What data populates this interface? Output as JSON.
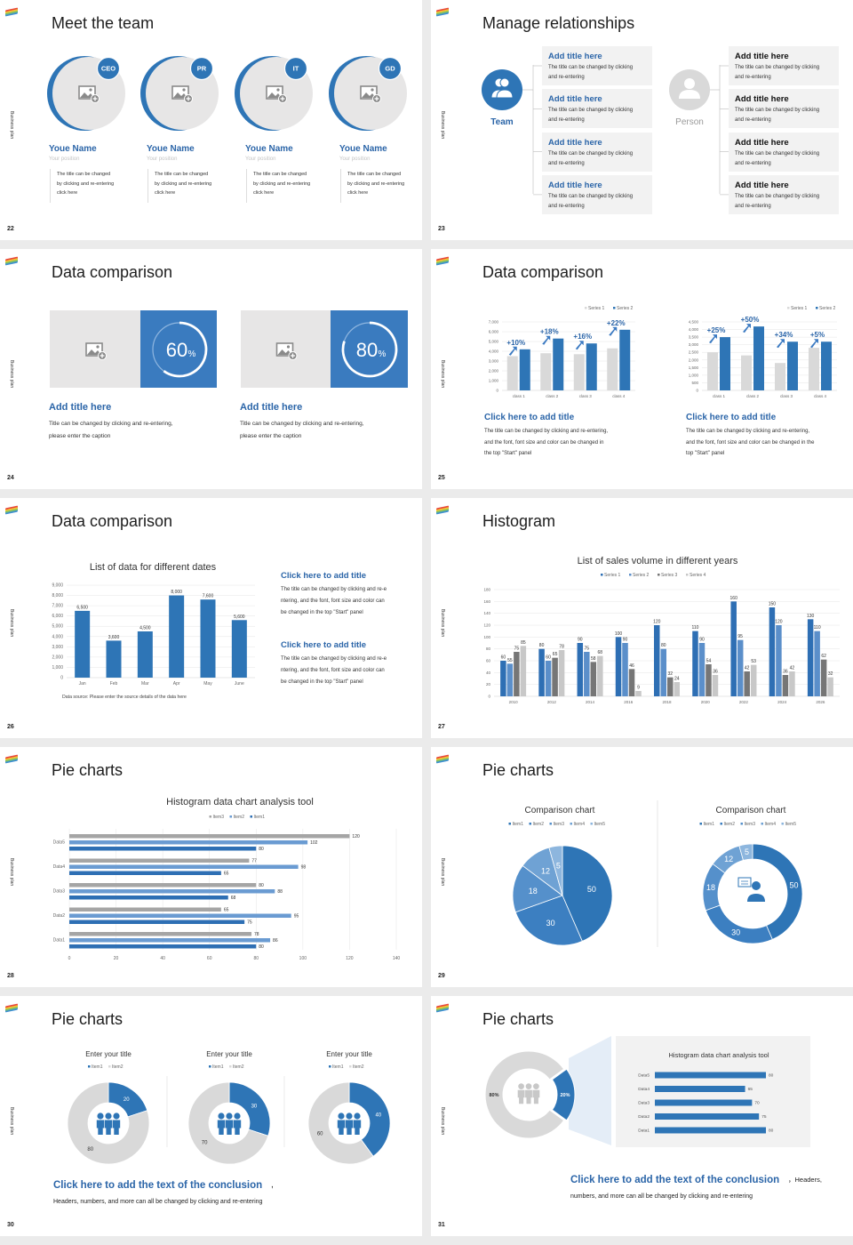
{
  "side_label": "Business plan",
  "colors": {
    "accent": "#2e75b6",
    "grey": "#d9d9d9",
    "panel": "#f2f2f2",
    "title_blue": "#2b65a8"
  },
  "slides": [
    {
      "number": "22",
      "title": "Meet the team",
      "members": [
        {
          "badge": "CEO",
          "name": "Youe Name",
          "position": "Your position",
          "desc": [
            "The title can be changed",
            "by clicking and re-entering",
            "click here"
          ]
        },
        {
          "badge": "PR",
          "name": "Youe Name",
          "position": "Your position",
          "desc": [
            "The title can be changed",
            "by clicking and re-entering",
            "click here"
          ]
        },
        {
          "badge": "IT",
          "name": "Youe Name",
          "position": "Your position",
          "desc": [
            "The title can be changed",
            "by clicking and re-entering",
            "click here"
          ]
        },
        {
          "badge": "GD",
          "name": "Youe Name",
          "position": "Your position",
          "desc": [
            "The title can be changed",
            "by clicking and re-entering",
            "click here"
          ]
        }
      ]
    },
    {
      "number": "23",
      "title": "Manage relationships",
      "team_label": "Team",
      "person_label": "Person",
      "team_items": [
        {
          "title": "Add title here",
          "desc": [
            "The title can be changed by clicking",
            "and re-entering"
          ]
        },
        {
          "title": "Add title here",
          "desc": [
            "The title can be changed by clicking",
            "and re-entering"
          ]
        },
        {
          "title": "Add title here",
          "desc": [
            "The title can be changed by clicking",
            "and re-entering"
          ]
        },
        {
          "title": "Add title here",
          "desc": [
            "The title can be changed by clicking",
            "and re-entering"
          ]
        }
      ],
      "person_items": [
        {
          "title": "Add title here",
          "desc": [
            "The title can be changed by clicking",
            "and re-entering"
          ]
        },
        {
          "title": "Add title here",
          "desc": [
            "The title can be changed by clicking",
            "and re-entering"
          ]
        },
        {
          "title": "Add title here",
          "desc": [
            "The title can be changed by clicking",
            "and re-entering"
          ]
        },
        {
          "title": "Add title here",
          "desc": [
            "The title can be changed by clicking",
            "and re-entering"
          ]
        }
      ]
    },
    {
      "number": "24",
      "title": "Data comparison",
      "cards": [
        {
          "percent": 60,
          "percent_text": "60",
          "unit": "%",
          "title": "Add title here",
          "desc": [
            "Title can be changed by clicking and re-entering,",
            "please enter the caption"
          ]
        },
        {
          "percent": 80,
          "percent_text": "80",
          "unit": "%",
          "title": "Add title here",
          "desc": [
            "Title can be changed by clicking and re-entering,",
            "please enter the caption"
          ]
        }
      ]
    },
    {
      "number": "25",
      "title": "Data comparison",
      "panels": [
        {
          "title": "Click here to add title",
          "desc": [
            "The title can be changed by clicking and re-entering,",
            "and the font, font size and color can be changed in",
            "the top \"Start\" panel"
          ]
        },
        {
          "title": "Click here to add title",
          "desc": [
            "The title can be changed by clicking and re-entering,",
            "and the font, font size and color can be changed in the",
            "top \"Start\" panel"
          ]
        }
      ]
    },
    {
      "number": "26",
      "title": "Data comparison",
      "panels": [
        {
          "title": "Click here to add title",
          "desc": [
            "The title can be changed by clicking and re-e",
            "ntering, and the font, font size and color can",
            "be changed in the top \"Start\" panel"
          ]
        },
        {
          "title": "Click here to add title",
          "desc": [
            "The title can be changed by clicking and re-e",
            "ntering, and the font, font size and color can",
            "be changed in the top \"Start\" panel"
          ]
        }
      ]
    },
    {
      "number": "27",
      "title": "Histogram"
    },
    {
      "number": "28",
      "title": "Pie charts"
    },
    {
      "number": "29",
      "title": "Pie charts"
    },
    {
      "number": "30",
      "title": "Pie charts",
      "conclusion": "Click here to add the text of the conclusion",
      "comma": ",",
      "conclusion_text": "Headers, numbers, and more can all be changed by clicking and re-entering"
    },
    {
      "number": "31",
      "title": "Pie charts",
      "conclusion": "Click here to add the text of the conclusion",
      "comma": "，Headers,",
      "conclusion_text": "numbers, and more can all be changed by clicking and re-entering"
    }
  ],
  "chart_data": [
    {
      "type": "bar",
      "categories": [
        "class 1",
        "class 2",
        "class 3",
        "class 4"
      ],
      "series": [
        {
          "name": "Series 1",
          "values": [
            3500,
            3800,
            3700,
            4300
          ]
        },
        {
          "name": "Series 2",
          "values": [
            4200,
            5300,
            4800,
            6200
          ]
        }
      ],
      "ylim": [
        0,
        7000
      ],
      "yticks": [
        "0",
        "1,000",
        "2,000",
        "3,000",
        "4,000",
        "5,000",
        "6,000",
        "7,000"
      ],
      "annotations": [
        "+10%",
        "+18%",
        "+16%",
        "+22%"
      ],
      "legend": "top-right",
      "grid": true
    },
    {
      "type": "bar",
      "categories": [
        "class 1",
        "class 2",
        "class 3",
        "class 4"
      ],
      "series": [
        {
          "name": "Series 1",
          "values": [
            2500,
            2300,
            1800,
            2800
          ]
        },
        {
          "name": "Series 2",
          "values": [
            3500,
            4200,
            3200,
            3200
          ]
        }
      ],
      "ylim": [
        0,
        4500
      ],
      "yticks": [
        "0",
        "500",
        "1,000",
        "1,500",
        "2,000",
        "2,500",
        "3,000",
        "3,500",
        "4,000",
        "4,500"
      ],
      "annotations": [
        "+25%",
        "+50%",
        "+34%",
        "+5%"
      ],
      "legend": "top-right",
      "grid": true
    },
    {
      "type": "bar",
      "title": "List of data for different dates",
      "categories": [
        "Jan",
        "Feb",
        "Mar",
        "Apr",
        "May",
        "June"
      ],
      "values": [
        6500,
        3600,
        4500,
        8000,
        7600,
        5600
      ],
      "data_labels": [
        "6,500",
        "3,600",
        "4,500",
        "8,000",
        "7,600",
        "5,600"
      ],
      "ylim": [
        0,
        9000
      ],
      "yticks": [
        "0",
        "1,000",
        "2,000",
        "3,000",
        "4,000",
        "5,000",
        "6,000",
        "7,000",
        "8,000",
        "9,000"
      ],
      "note": "Data source: Please enter the source details of the data here",
      "grid": true
    },
    {
      "type": "bar",
      "title": "List of sales volume in different years",
      "categories": [
        "2010",
        "2012",
        "2014",
        "2016",
        "2018",
        "2020",
        "2022",
        "2024",
        "2026"
      ],
      "series": [
        {
          "name": "Series 1",
          "values": [
            60,
            80,
            90,
            100,
            120,
            110,
            160,
            150,
            130
          ]
        },
        {
          "name": "Series 2",
          "values": [
            55,
            60,
            75,
            90,
            80,
            90,
            95,
            120,
            110
          ]
        },
        {
          "name": "Series 3",
          "values": [
            75,
            65,
            58,
            46,
            32,
            54,
            42,
            36,
            62
          ]
        },
        {
          "name": "Series 4",
          "values": [
            85,
            78,
            68,
            9,
            24,
            36,
            53,
            42,
            32
          ]
        }
      ],
      "ylim": [
        0,
        180
      ],
      "yticks": [
        "0",
        "20",
        "40",
        "60",
        "80",
        "100",
        "120",
        "140",
        "160",
        "180"
      ],
      "legend": "top",
      "grid": true
    },
    {
      "type": "bar",
      "orientation": "horizontal",
      "title": "Histogram data chart analysis tool",
      "categories": [
        "Data1",
        "Data2",
        "Data3",
        "Data4",
        "Data5"
      ],
      "series": [
        {
          "name": "Item3",
          "values": [
            78,
            65,
            80,
            77,
            120
          ]
        },
        {
          "name": "Item2",
          "values": [
            86,
            95,
            88,
            98,
            102
          ]
        },
        {
          "name": "Item1",
          "values": [
            80,
            75,
            68,
            65,
            80
          ]
        }
      ],
      "xlim": [
        0,
        140
      ],
      "xticks": [
        "0",
        "20",
        "40",
        "60",
        "80",
        "100",
        "120",
        "140"
      ],
      "legend": "top",
      "grid": true
    },
    {
      "type": "pie",
      "title": "Comparison chart",
      "categories": [
        "Item1",
        "Item2",
        "Item3",
        "Item4",
        "Item5"
      ],
      "values": [
        50,
        30,
        18,
        12,
        5
      ],
      "legend": "top"
    },
    {
      "type": "pie",
      "variant": "donut",
      "title": "Comparison chart",
      "categories": [
        "Item1",
        "Item2",
        "Item3",
        "Item4",
        "Item5"
      ],
      "values": [
        50,
        30,
        18,
        12,
        5
      ],
      "legend": "top"
    },
    {
      "type": "pie",
      "variant": "donut",
      "title": "Enter your title",
      "categories": [
        "Item1",
        "Item2"
      ],
      "values": [
        20,
        80
      ],
      "legend": "top"
    },
    {
      "type": "pie",
      "variant": "donut",
      "title": "Enter your title",
      "categories": [
        "Item1",
        "Item2"
      ],
      "values": [
        30,
        70
      ],
      "legend": "top"
    },
    {
      "type": "pie",
      "variant": "donut",
      "title": "Enter your title",
      "categories": [
        "Item1",
        "Item2"
      ],
      "values": [
        40,
        60
      ],
      "legend": "top"
    },
    {
      "type": "pie",
      "variant": "donut",
      "values": [
        20,
        80
      ],
      "labels": [
        "20%",
        "80%"
      ]
    },
    {
      "type": "bar",
      "orientation": "horizontal",
      "title": "Histogram data chart analysis tool",
      "categories": [
        "Data1",
        "Data2",
        "Data3",
        "Data4",
        "Data5"
      ],
      "values": [
        80,
        75,
        70,
        65,
        80
      ],
      "xlim": [
        0,
        80
      ]
    }
  ]
}
